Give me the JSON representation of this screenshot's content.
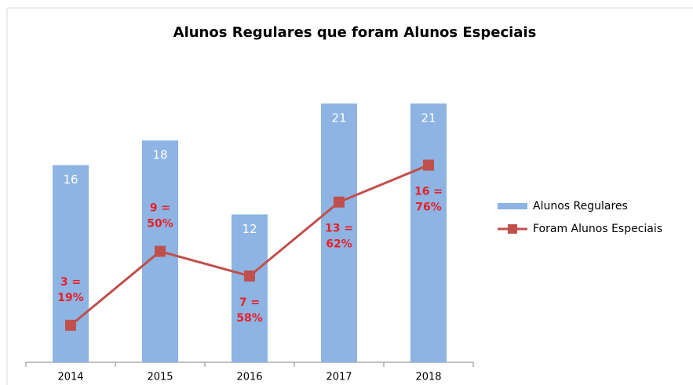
{
  "chart_data": {
    "type": "bar-line",
    "title": "Alunos Regulares que foram Alunos Especiais",
    "categories": [
      "2014",
      "2015",
      "2016",
      "2017",
      "2018"
    ],
    "series": [
      {
        "name": "Alunos Regulares",
        "type": "bar",
        "color": "#8db4e2",
        "values": [
          16,
          18,
          12,
          21,
          21
        ]
      },
      {
        "name": "Foram Alunos Especiais",
        "type": "line",
        "color": "#c0504d",
        "values": [
          3,
          9,
          7,
          13,
          16
        ],
        "value_labels": [
          "3 = 19%",
          "9 = 50%",
          "7 = 58%",
          "13 = 62%",
          "16 = 76%"
        ]
      }
    ],
    "ylim": [
      0,
      21
    ],
    "legend": "right"
  }
}
